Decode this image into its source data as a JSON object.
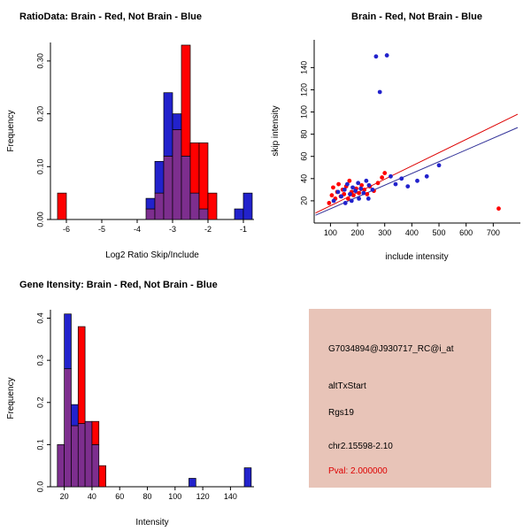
{
  "page": {
    "background": "#FFFFFF"
  },
  "chart_data": [
    {
      "id": "ratio-histogram",
      "type": "bar",
      "subtype": "overlaid-histogram",
      "title": "RatioData: Brain - Red, Not Brain - Blue",
      "xlabel": "Log2 Ratio Skip/Include",
      "ylabel": "Frequency",
      "xlim": [
        -6.45,
        -0.7
      ],
      "ylim": [
        0,
        0.335
      ],
      "xticks": [
        -6,
        -5,
        -4,
        -3,
        -2,
        -1
      ],
      "xtick_labels": [
        "-6",
        "-5",
        "-4",
        "-3",
        "-2",
        "-1"
      ],
      "yticks": [
        0,
        0.1,
        0.2,
        0.3
      ],
      "ytick_labels": [
        "0.00",
        "0.10",
        "0.20",
        "0.30"
      ],
      "bin_width": 0.25,
      "series": [
        {
          "name": "Brain",
          "color": "#FF0000"
        },
        {
          "name": "Not Brain",
          "color": "#2222CC"
        }
      ],
      "overlap_color": "#7D2E8E",
      "bins": [
        {
          "x": -6.25,
          "red": 0.05,
          "blue": 0
        },
        {
          "x": -3.75,
          "red": 0.02,
          "blue": 0.04
        },
        {
          "x": -3.5,
          "red": 0.05,
          "blue": 0.11
        },
        {
          "x": -3.25,
          "red": 0.12,
          "blue": 0.24
        },
        {
          "x": -3.0,
          "red": 0.17,
          "blue": 0.2
        },
        {
          "x": -2.75,
          "red": 0.33,
          "blue": 0.12
        },
        {
          "x": -2.5,
          "red": 0.145,
          "blue": 0.05
        },
        {
          "x": -2.25,
          "red": 0.145,
          "blue": 0.02
        },
        {
          "x": -2.0,
          "red": 0.05,
          "blue": 0
        },
        {
          "x": -1.25,
          "red": 0,
          "blue": 0.02
        },
        {
          "x": -1.0,
          "red": 0,
          "blue": 0.05
        }
      ]
    },
    {
      "id": "intensity-scatter",
      "type": "scatter",
      "title": "Brain - Red, Not Brain - Blue",
      "xlabel": "include intensity",
      "ylabel": "skip intensity",
      "xlim": [
        40,
        800
      ],
      "ylim": [
        0,
        165
      ],
      "xticks": [
        100,
        200,
        300,
        400,
        500,
        600,
        700
      ],
      "xtick_labels": [
        "100",
        "200",
        "300",
        "400",
        "500",
        "600",
        "700"
      ],
      "yticks": [
        20,
        40,
        60,
        80,
        100,
        120,
        140
      ],
      "ytick_labels": [
        "20",
        "40",
        "60",
        "80",
        "100",
        "120",
        "140"
      ],
      "series": [
        {
          "name": "Brain",
          "color": "#FF0000",
          "points": [
            [
              95,
              18
            ],
            [
              105,
              25
            ],
            [
              110,
              32
            ],
            [
              118,
              22
            ],
            [
              125,
              28
            ],
            [
              130,
              35
            ],
            [
              138,
              24
            ],
            [
              145,
              30
            ],
            [
              150,
              26
            ],
            [
              158,
              33
            ],
            [
              165,
              22
            ],
            [
              170,
              38
            ],
            [
              178,
              28
            ],
            [
              185,
              25
            ],
            [
              195,
              31
            ],
            [
              205,
              27
            ],
            [
              215,
              34
            ],
            [
              225,
              30
            ],
            [
              235,
              26
            ],
            [
              245,
              33
            ],
            [
              260,
              29
            ],
            [
              275,
              36
            ],
            [
              290,
              41
            ],
            [
              300,
              45
            ],
            [
              720,
              13
            ]
          ]
        },
        {
          "name": "Not Brain",
          "color": "#2222CC",
          "points": [
            [
              112,
              20
            ],
            [
              128,
              28
            ],
            [
              140,
              24
            ],
            [
              152,
              30
            ],
            [
              162,
              35
            ],
            [
              172,
              26
            ],
            [
              182,
              32
            ],
            [
              192,
              29
            ],
            [
              202,
              36
            ],
            [
              212,
              31
            ],
            [
              222,
              27
            ],
            [
              232,
              38
            ],
            [
              242,
              34
            ],
            [
              255,
              30
            ],
            [
              268,
              150
            ],
            [
              282,
              118
            ],
            [
              308,
              151
            ],
            [
              322,
              42
            ],
            [
              340,
              35
            ],
            [
              362,
              40
            ],
            [
              385,
              33
            ],
            [
              420,
              38
            ],
            [
              455,
              42
            ],
            [
              500,
              52
            ],
            [
              240,
              22
            ],
            [
              205,
              22
            ],
            [
              178,
              20
            ],
            [
              155,
              18
            ]
          ]
        }
      ],
      "lines": [
        {
          "name": "brain-fit",
          "color": "#DD0000",
          "x": [
            45,
            790
          ],
          "y": [
            9,
            98
          ]
        },
        {
          "name": "not-brain-fit",
          "color": "#333399",
          "x": [
            45,
            790
          ],
          "y": [
            7,
            86
          ]
        }
      ]
    },
    {
      "id": "gene-intensity-histogram",
      "type": "bar",
      "subtype": "overlaid-histogram",
      "title": "Gene Itensity: Brain - Red, Not Brain - Blue",
      "xlabel": "Intensity",
      "ylabel": "Frequency",
      "xlim": [
        10,
        157
      ],
      "ylim": [
        0,
        0.42
      ],
      "xticks": [
        20,
        40,
        60,
        80,
        100,
        120,
        140
      ],
      "xtick_labels": [
        "20",
        "40",
        "60",
        "80",
        "100",
        "120",
        "140"
      ],
      "yticks": [
        0,
        0.1,
        0.2,
        0.3,
        0.4
      ],
      "ytick_labels": [
        "0.0",
        "0.1",
        "0.2",
        "0.3",
        "0.4"
      ],
      "bin_width": 5,
      "series": [
        {
          "name": "Brain",
          "color": "#FF0000"
        },
        {
          "name": "Not Brain",
          "color": "#2222CC"
        }
      ],
      "overlap_color": "#7D2E8E",
      "bins": [
        {
          "x": 15,
          "red": 0.1,
          "blue": 0.1
        },
        {
          "x": 20,
          "red": 0.28,
          "blue": 0.41
        },
        {
          "x": 25,
          "red": 0.145,
          "blue": 0.195
        },
        {
          "x": 30,
          "red": 0.38,
          "blue": 0.15
        },
        {
          "x": 35,
          "red": 0.155,
          "blue": 0.155
        },
        {
          "x": 40,
          "red": 0.155,
          "blue": 0.1
        },
        {
          "x": 45,
          "red": 0.05,
          "blue": 0
        },
        {
          "x": 110,
          "red": 0,
          "blue": 0.02
        },
        {
          "x": 150,
          "red": 0,
          "blue": 0.045
        }
      ]
    }
  ],
  "info_panel": {
    "bg": "#E8C4B8",
    "lines": [
      "G7034894@J930717_RC@i_at",
      "altTxStart",
      "Rgs19",
      "chr2.15598-2.10",
      "Pval: 2.000000"
    ],
    "pval_color": "#DD0000"
  }
}
